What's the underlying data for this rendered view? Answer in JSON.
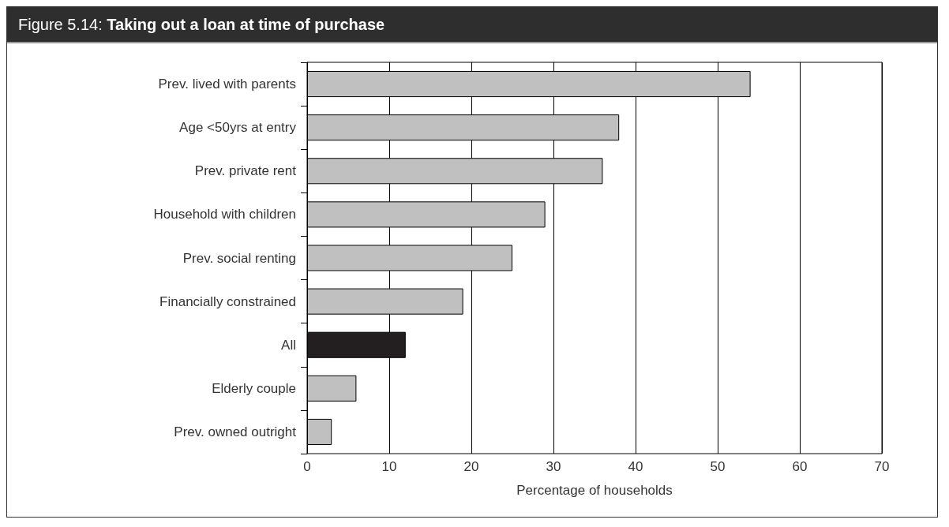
{
  "chart_data": {
    "type": "bar",
    "orientation": "horizontal",
    "title": "Figure 5.14: Taking out a loan at time of purchase",
    "xlabel": "Percentage of households",
    "categories": [
      "Prev. lived with parents",
      "Age <50yrs at entry",
      "Prev. private rent",
      "Household with children",
      "Prev. social renting",
      "Financially constrained",
      "All",
      "Elderly couple",
      "Prev. owned outright"
    ],
    "values": [
      54,
      38,
      36,
      29,
      25,
      19,
      12,
      6,
      3
    ],
    "colors": [
      "#c0c0c0",
      "#c0c0c0",
      "#c0c0c0",
      "#c0c0c0",
      "#c0c0c0",
      "#c0c0c0",
      "#231f20",
      "#c0c0c0",
      "#c0c0c0"
    ],
    "xlim": [
      0,
      70
    ],
    "xticks": [
      0,
      10,
      20,
      30,
      40,
      50,
      60,
      70
    ],
    "grid": "x"
  }
}
